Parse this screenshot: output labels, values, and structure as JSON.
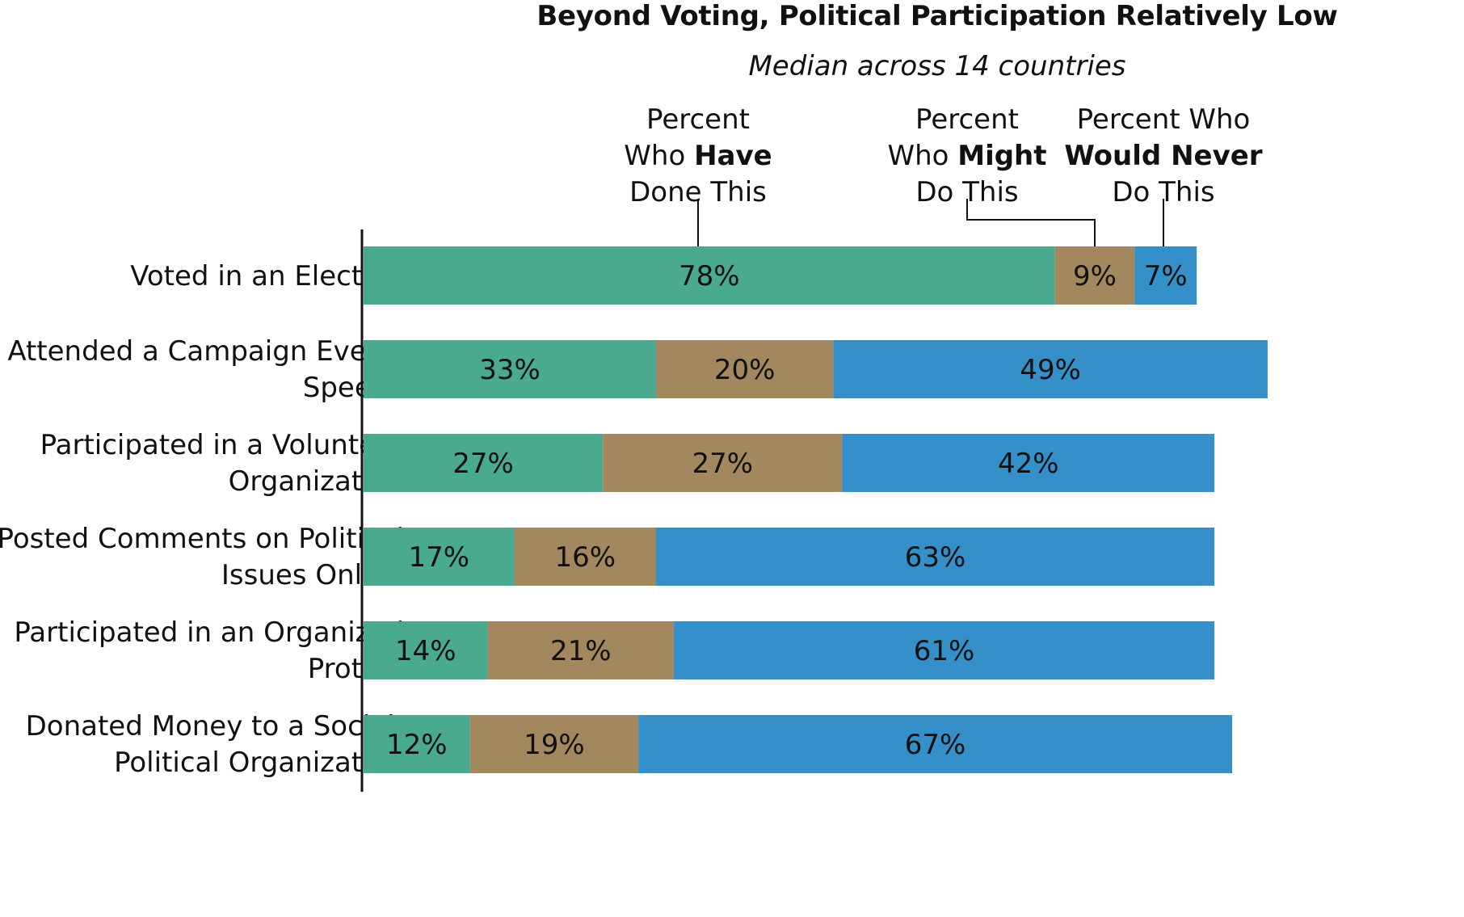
{
  "chart_data": {
    "type": "bar",
    "orientation": "horizontal",
    "stacked": true,
    "title": "Beyond Voting, Political Participation Relatively Low",
    "subtitle": "Median across 14 countries",
    "categories": [
      [
        "Voted in an Election"
      ],
      [
        "Attended a Campaign Event/",
        "Speech"
      ],
      [
        "Participated in a Volunteer",
        "Organization"
      ],
      [
        "Posted Comments on Political",
        "Issues Online"
      ],
      [
        "Participated in an Organized",
        "Protest"
      ],
      [
        "Donated Money to a Social/",
        "Political Organization"
      ]
    ],
    "series": [
      {
        "legend_pre": "Percent",
        "legend_pre2": "Who ",
        "legend_bold": "Have",
        "legend_post": "Done This",
        "color": "#4aaa90",
        "values": [
          78,
          33,
          27,
          17,
          14,
          12
        ],
        "labels": [
          "78%",
          "33%",
          "27%",
          "17%",
          "14%",
          "12%"
        ]
      },
      {
        "legend_pre": "Percent",
        "legend_pre2": "Who ",
        "legend_bold": "Might",
        "legend_post": "Do This",
        "color": "#a3875f",
        "values": [
          9,
          20,
          27,
          16,
          21,
          19
        ],
        "labels": [
          "9%",
          "20%",
          "27%",
          "16%",
          "21%",
          "19%"
        ]
      },
      {
        "legend_pre": "Percent Who",
        "legend_pre2": "",
        "legend_bold": "Would Never",
        "legend_post": "Do This",
        "color": "#358fc9",
        "values": [
          7,
          49,
          42,
          63,
          61,
          67
        ],
        "labels": [
          "7%",
          "49%",
          "42%",
          "63%",
          "61%",
          "67%"
        ]
      }
    ],
    "xlim": [
      0,
      102
    ],
    "grid": false,
    "legend": "top"
  }
}
